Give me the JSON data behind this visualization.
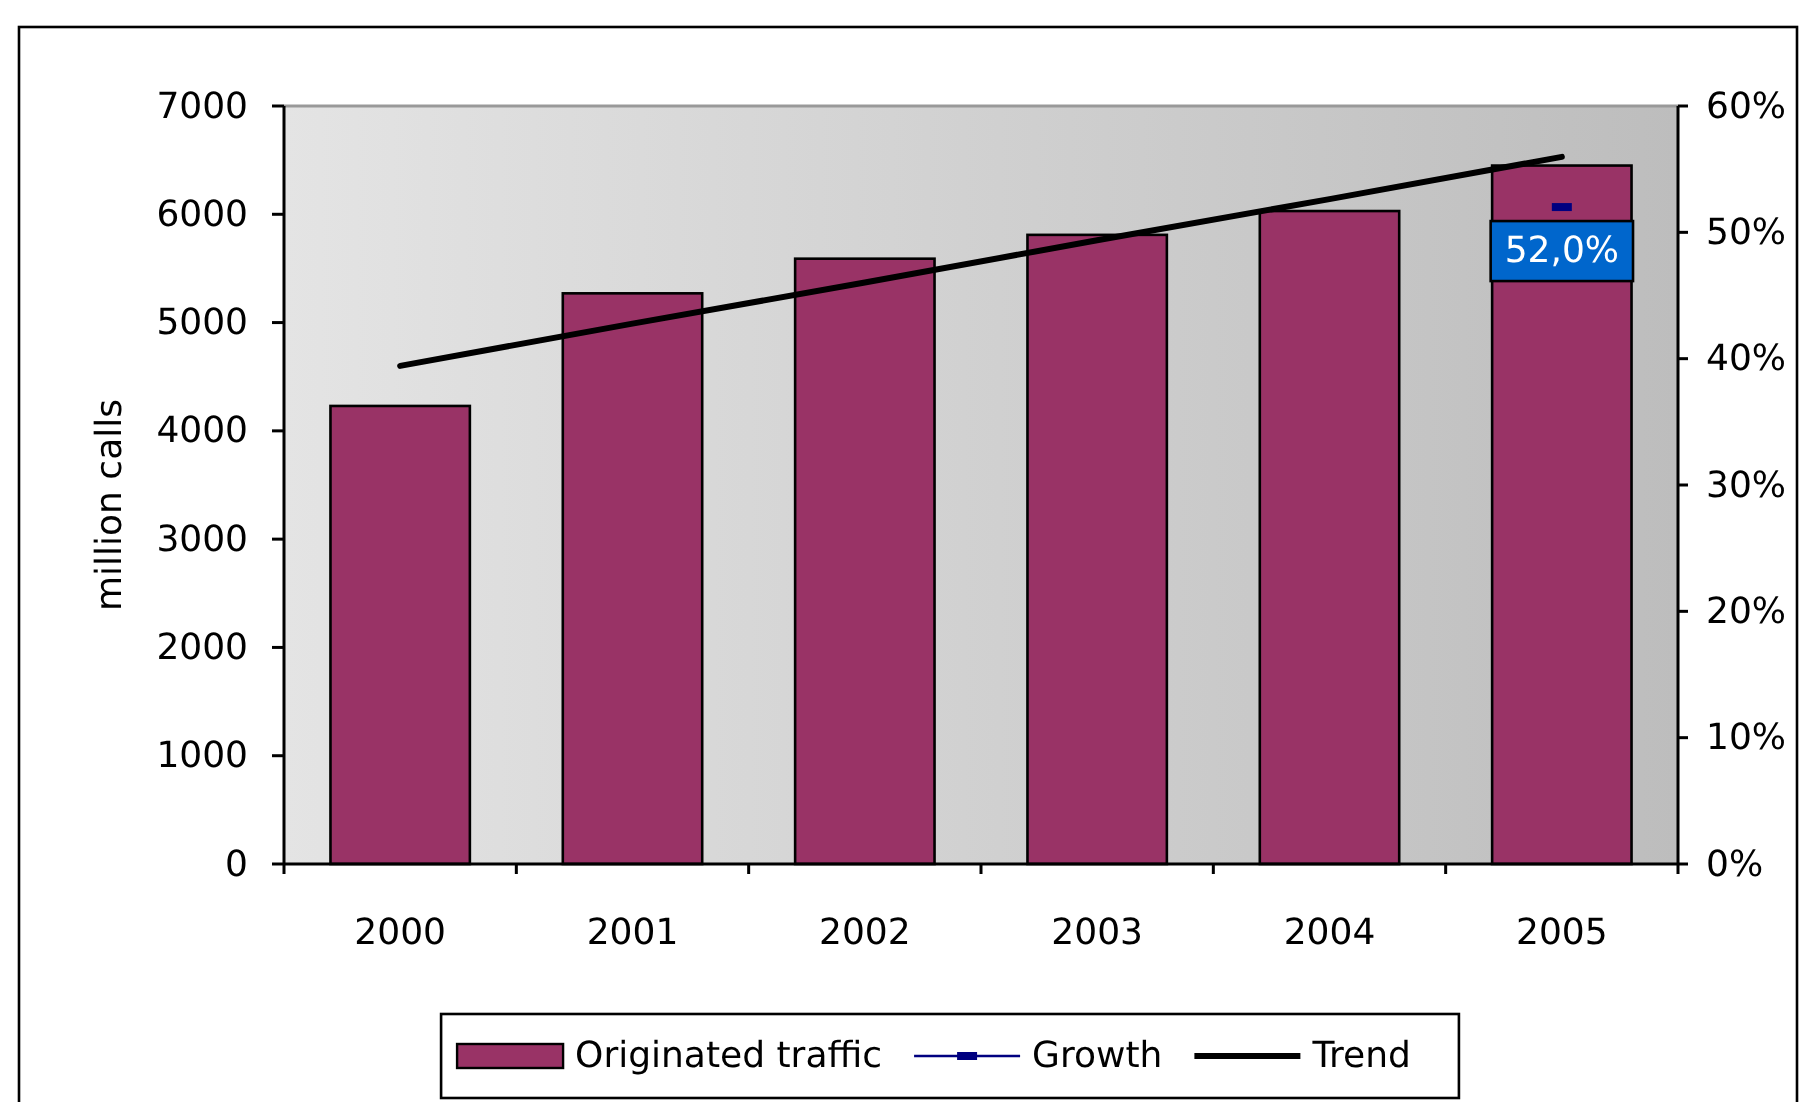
{
  "chart_data": {
    "type": "bar",
    "categories": [
      "2000",
      "2001",
      "2002",
      "2003",
      "2004",
      "2005"
    ],
    "series": [
      {
        "name": "Originated traffic",
        "color": "#993366",
        "values": [
          4230,
          5270,
          5590,
          5810,
          6030,
          6450
        ]
      },
      {
        "name": "Growth",
        "type": "line",
        "axis": "y2",
        "color": "#000080",
        "marker": "square",
        "values": [
          null,
          null,
          null,
          null,
          null,
          52.0
        ],
        "value_labels": [
          null,
          null,
          null,
          null,
          null,
          "52,0%"
        ]
      },
      {
        "name": "Trend",
        "type": "line",
        "color": "#000000",
        "values": [
          4600,
          4990,
          5370,
          5760,
          6140,
          6530
        ]
      }
    ],
    "ylabel": "million calls",
    "ylim": [
      0,
      7000
    ],
    "yticks": [
      0,
      1000,
      2000,
      3000,
      4000,
      5000,
      6000,
      7000
    ],
    "y2lim": [
      0,
      60
    ],
    "y2ticks": [
      {
        "value": 0,
        "label": "0%"
      },
      {
        "value": 10,
        "label": "10%"
      },
      {
        "value": 20,
        "label": "20%"
      },
      {
        "value": 30,
        "label": "30%"
      },
      {
        "value": 40,
        "label": "40%"
      },
      {
        "value": 50,
        "label": "50%"
      },
      {
        "value": 60,
        "label": "60%"
      }
    ],
    "legend": "bottom"
  }
}
